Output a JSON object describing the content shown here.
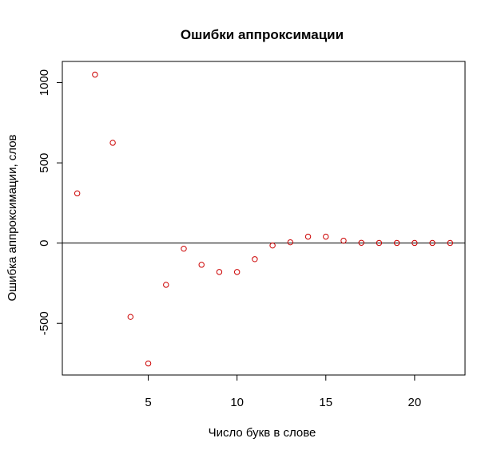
{
  "chart_data": {
    "type": "scatter",
    "title": "Ошибки аппроксимации",
    "xlabel": "Число букв в слове",
    "ylabel": "Ошибка аппроксимации, слов",
    "xlim": [
      0.16,
      22.84
    ],
    "ylim": [
      -822,
      1132
    ],
    "xticks": [
      5,
      10,
      15,
      20
    ],
    "yticks": [
      -500,
      0,
      500,
      1000
    ],
    "hline": 0,
    "grid": false,
    "legend": "none",
    "point_color": "#cc0000",
    "line_color": "#000000",
    "x": [
      1,
      2,
      3,
      4,
      5,
      6,
      7,
      8,
      9,
      10,
      11,
      12,
      13,
      14,
      15,
      16,
      17,
      18,
      19,
      20,
      21,
      22
    ],
    "y": [
      310,
      1050,
      625,
      -460,
      -750,
      -260,
      -35,
      -135,
      -180,
      -180,
      -100,
      -15,
      5,
      40,
      40,
      15,
      2,
      1,
      1,
      1,
      1,
      1
    ]
  }
}
